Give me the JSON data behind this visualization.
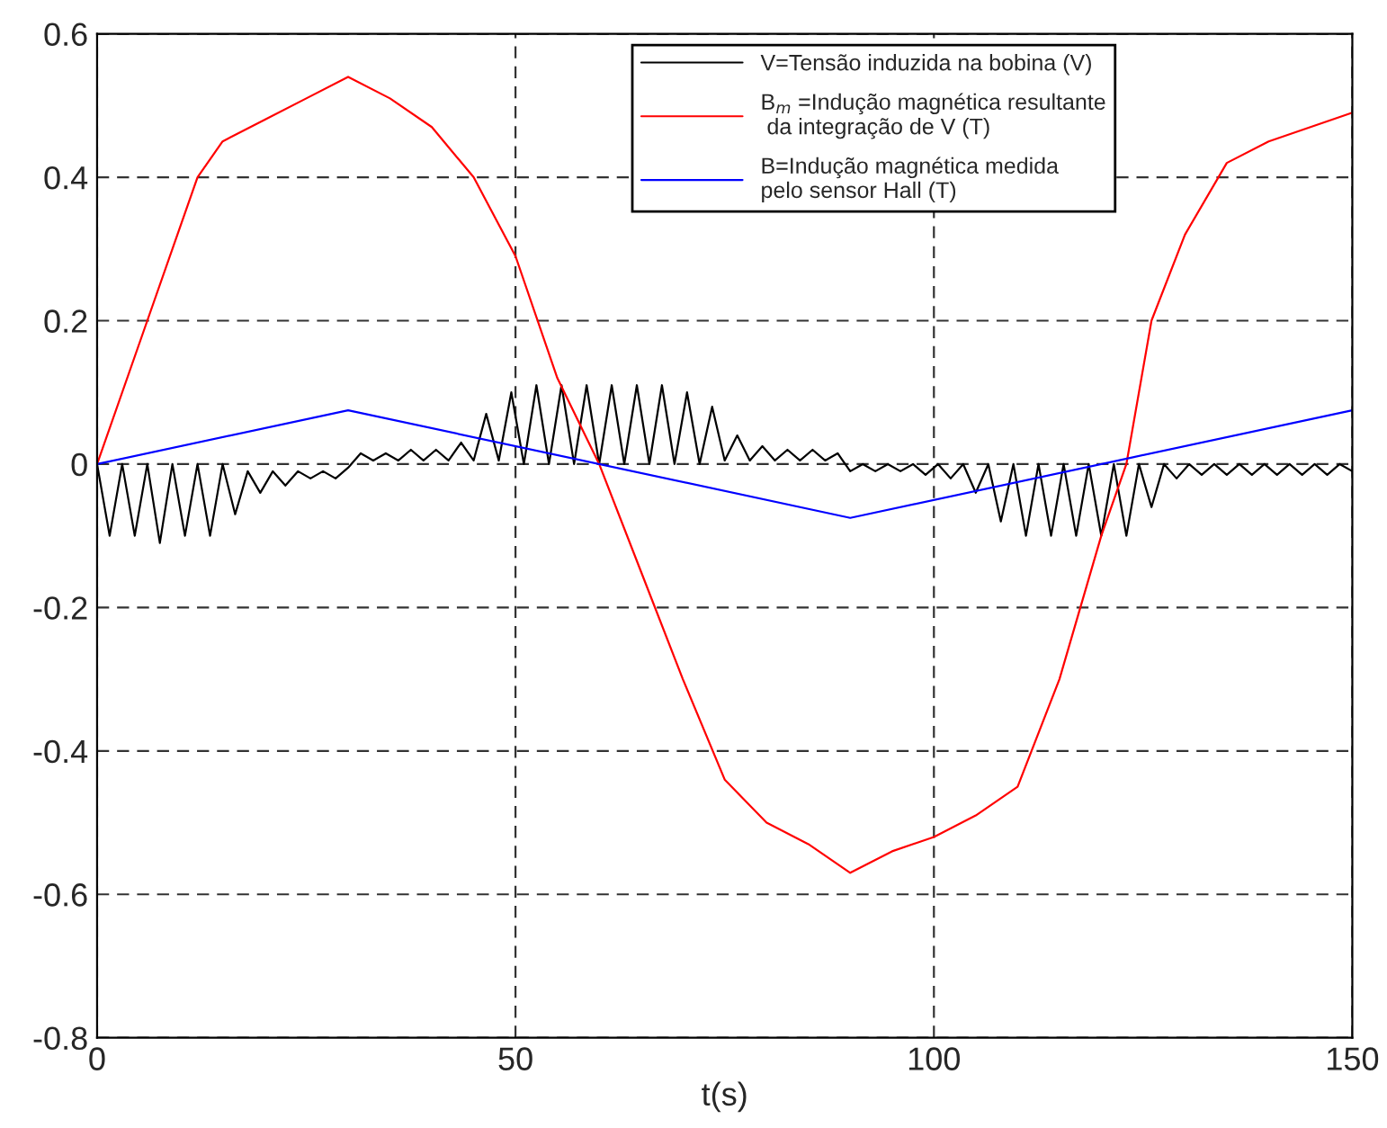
{
  "chart_data": {
    "type": "line",
    "xlabel": "t(s)",
    "xlim": [
      0,
      150
    ],
    "ylim": [
      -0.8,
      0.6
    ],
    "xticks": [
      0,
      50,
      100,
      150
    ],
    "yticks": [
      -0.8,
      -0.6,
      -0.4,
      -0.2,
      0,
      0.2,
      0.4,
      0.6
    ],
    "grid": true,
    "legend": "top right",
    "line_style": "solid",
    "marker": "none",
    "series": [
      {
        "name": "V=Tensão induzida na bobina (V)",
        "color": "#000000",
        "x": [
          0,
          1.5,
          3,
          4.5,
          6,
          7.5,
          9,
          10.5,
          12,
          13.5,
          15,
          16.5,
          18,
          19.5,
          21,
          22.5,
          24,
          25.5,
          27,
          28.5,
          30,
          31.5,
          33,
          34.5,
          36,
          37.5,
          39,
          40.5,
          42,
          43.5,
          45,
          46.5,
          48,
          49.5,
          51,
          52.5,
          54,
          55.5,
          57,
          58.5,
          60,
          61.5,
          63,
          64.5,
          66,
          67.5,
          69,
          70.5,
          72,
          73.5,
          75,
          76.5,
          78,
          79.5,
          81,
          82.5,
          84,
          85.5,
          87,
          88.5,
          90,
          91.5,
          93,
          94.5,
          96,
          97.5,
          99,
          100.5,
          102,
          103.5,
          105,
          106.5,
          108,
          109.5,
          111,
          112.5,
          114,
          115.5,
          117,
          118.5,
          120,
          121.5,
          123,
          124.5,
          126,
          127.5,
          129,
          130.5,
          132,
          133.5,
          135,
          136.5,
          138,
          139.5,
          141,
          142.5,
          144,
          145.5,
          147,
          148.5,
          150
        ],
        "values": [
          0,
          -0.1,
          0,
          -0.1,
          0,
          -0.11,
          0,
          -0.1,
          0,
          -0.1,
          0,
          -0.07,
          -0.01,
          -0.04,
          -0.01,
          -0.03,
          -0.01,
          -0.02,
          -0.01,
          -0.02,
          -0.005,
          0.015,
          0.005,
          0.015,
          0.005,
          0.02,
          0.005,
          0.02,
          0.005,
          0.03,
          0.005,
          0.07,
          0.005,
          0.1,
          0,
          0.11,
          0,
          0.11,
          0,
          0.11,
          0,
          0.11,
          0,
          0.11,
          0,
          0.11,
          0,
          0.1,
          0,
          0.08,
          0.005,
          0.04,
          0.005,
          0.025,
          0.005,
          0.02,
          0.005,
          0.02,
          0.005,
          0.015,
          -0.01,
          0,
          -0.01,
          0,
          -0.01,
          0,
          -0.015,
          0,
          -0.02,
          0,
          -0.04,
          0,
          -0.08,
          0,
          -0.1,
          0,
          -0.1,
          0,
          -0.1,
          0,
          -0.1,
          0,
          -0.1,
          0,
          -0.06,
          0,
          -0.02,
          0,
          -0.015,
          0,
          -0.015,
          0,
          -0.015,
          0,
          -0.015,
          0,
          -0.015,
          0,
          -0.015,
          0,
          -0.01
        ]
      },
      {
        "name": "B$_{m}$ =Indução magnética resultante\n da integração de V (T)",
        "color": "#ff0000",
        "x": [
          0,
          6,
          12,
          15,
          20,
          25,
          30,
          35,
          40,
          45,
          50,
          55,
          60,
          65,
          70,
          75,
          80,
          85,
          90,
          95,
          100,
          105,
          110,
          115,
          120,
          123,
          126,
          130,
          135,
          140,
          145,
          150
        ],
        "values": [
          0,
          0.2,
          0.4,
          0.45,
          0.48,
          0.51,
          0.54,
          0.51,
          0.47,
          0.4,
          0.29,
          0.12,
          0,
          -0.15,
          -0.3,
          -0.44,
          -0.5,
          -0.53,
          -0.57,
          -0.54,
          -0.52,
          -0.49,
          -0.45,
          -0.3,
          -0.1,
          0,
          0.2,
          0.32,
          0.42,
          0.45,
          0.47,
          0.49
        ]
      },
      {
        "name": "B=Indução magnética medida\npelo sensor Hall (T)",
        "color": "#0000ff",
        "x": [
          0,
          30,
          90,
          150
        ],
        "values": [
          0,
          0.075,
          -0.075,
          0.075
        ]
      }
    ]
  }
}
